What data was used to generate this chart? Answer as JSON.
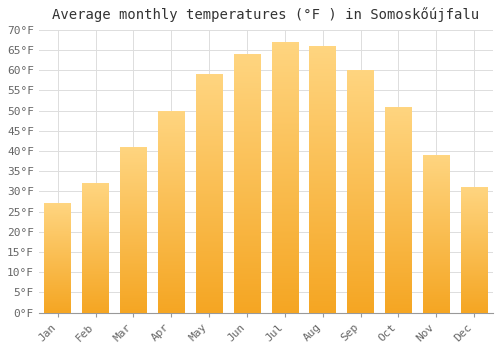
{
  "title": "Average monthly temperatures (°F ) in Somoskőújfalu",
  "months": [
    "Jan",
    "Feb",
    "Mar",
    "Apr",
    "May",
    "Jun",
    "Jul",
    "Aug",
    "Sep",
    "Oct",
    "Nov",
    "Dec"
  ],
  "values": [
    27,
    32,
    41,
    50,
    59,
    64,
    67,
    66,
    60,
    51,
    39,
    31
  ],
  "bar_color_bottom": "#F5A623",
  "bar_color_top": "#FFD580",
  "ylim": [
    0,
    70
  ],
  "yticks": [
    0,
    5,
    10,
    15,
    20,
    25,
    30,
    35,
    40,
    45,
    50,
    55,
    60,
    65,
    70
  ],
  "background_color": "#ffffff",
  "grid_color": "#dddddd",
  "title_fontsize": 10,
  "tick_fontsize": 8,
  "bar_width": 0.7
}
